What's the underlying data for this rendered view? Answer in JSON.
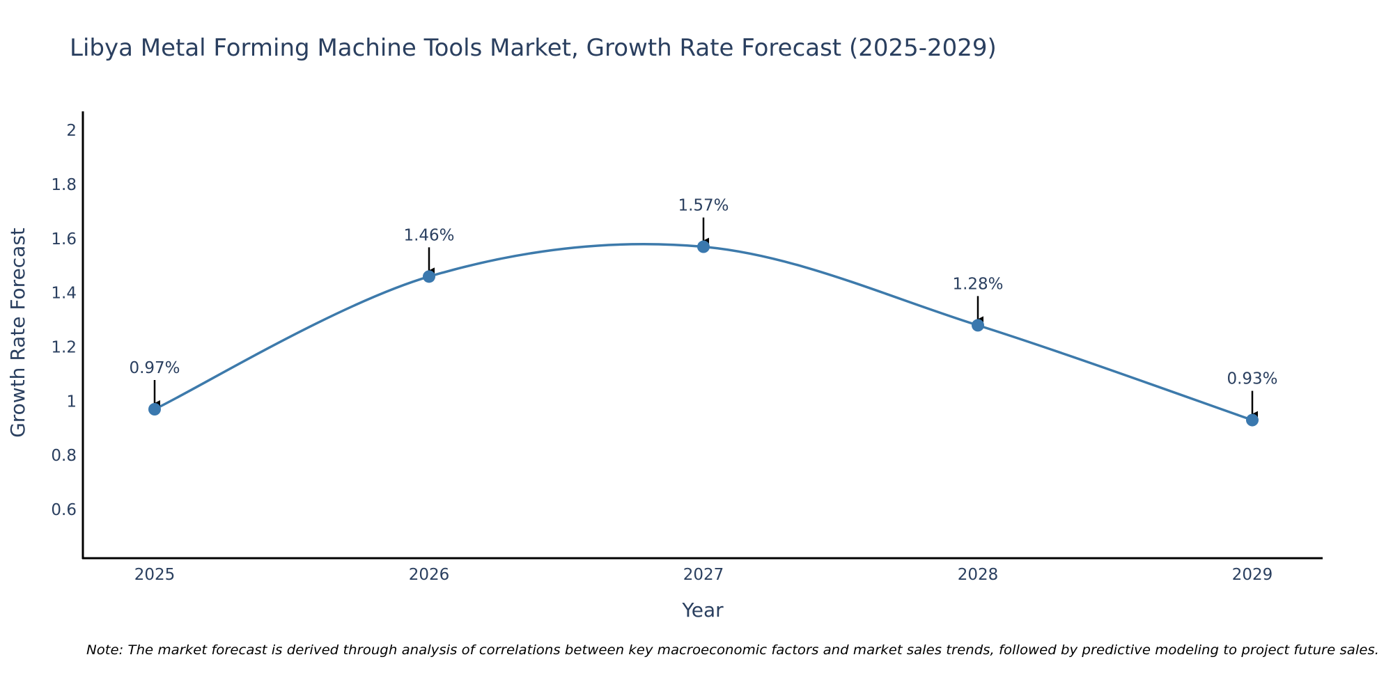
{
  "colors": {
    "line": "#3d7aab",
    "marker": "#3a78ae",
    "axis": "#000000",
    "text": "#2a3f5f",
    "arrow": "#000000"
  },
  "chart_data": {
    "type": "line",
    "title": "Libya Metal Forming Machine Tools Market, Growth Rate Forecast (2025-2029)",
    "xlabel": "Year",
    "ylabel": "Growth Rate Forecast",
    "categories": [
      "2025",
      "2026",
      "2027",
      "2028",
      "2029"
    ],
    "series": [
      {
        "name": "Growth Rate Forecast",
        "values": [
          0.97,
          1.46,
          1.57,
          1.28,
          0.93
        ],
        "labels": [
          "0.97%",
          "1.46%",
          "1.57%",
          "1.28%",
          "0.93%"
        ]
      }
    ],
    "ylim": [
      0.42,
      2.07
    ],
    "yticks": [
      0.6,
      0.8,
      1,
      1.2,
      1.4,
      1.6,
      1.8,
      2
    ],
    "ytick_labels": [
      "0.6",
      "0.8",
      "1",
      "1.2",
      "1.4",
      "1.6",
      "1.8",
      "2"
    ],
    "line_shape": "spline",
    "grid": false,
    "legend": "none"
  },
  "note": "Note: The market forecast is derived through analysis of correlations between key macroeconomic factors and market sales trends, followed by predictive modeling to project future sales."
}
